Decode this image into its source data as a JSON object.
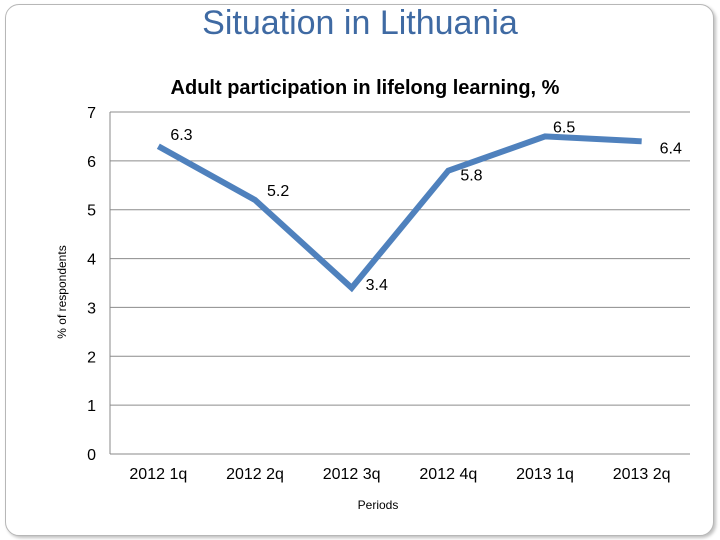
{
  "slide": {
    "title": "Situation in Lithuania"
  },
  "chart_data": {
    "type": "line",
    "title": "Adult participation in lifelong learning, %",
    "xlabel": "Periods",
    "ylabel": "% of respondents",
    "categories": [
      "2012 1q",
      "2012 2q",
      "2012 3q",
      "2012 4q",
      "2013 1q",
      "2013 2q"
    ],
    "series": [
      {
        "values": [
          6.3,
          5.2,
          3.4,
          5.8,
          6.5,
          6.4
        ]
      }
    ],
    "data_labels": [
      "6.3",
      "5.2",
      "3.4",
      "5.8",
      "6.5",
      "6.4"
    ],
    "ylim": [
      0,
      7
    ],
    "yticks": [
      "0",
      "1",
      "2",
      "3",
      "4",
      "5",
      "6",
      "7"
    ],
    "grid": true,
    "line_color": "#4f81bd",
    "legend": "none"
  }
}
